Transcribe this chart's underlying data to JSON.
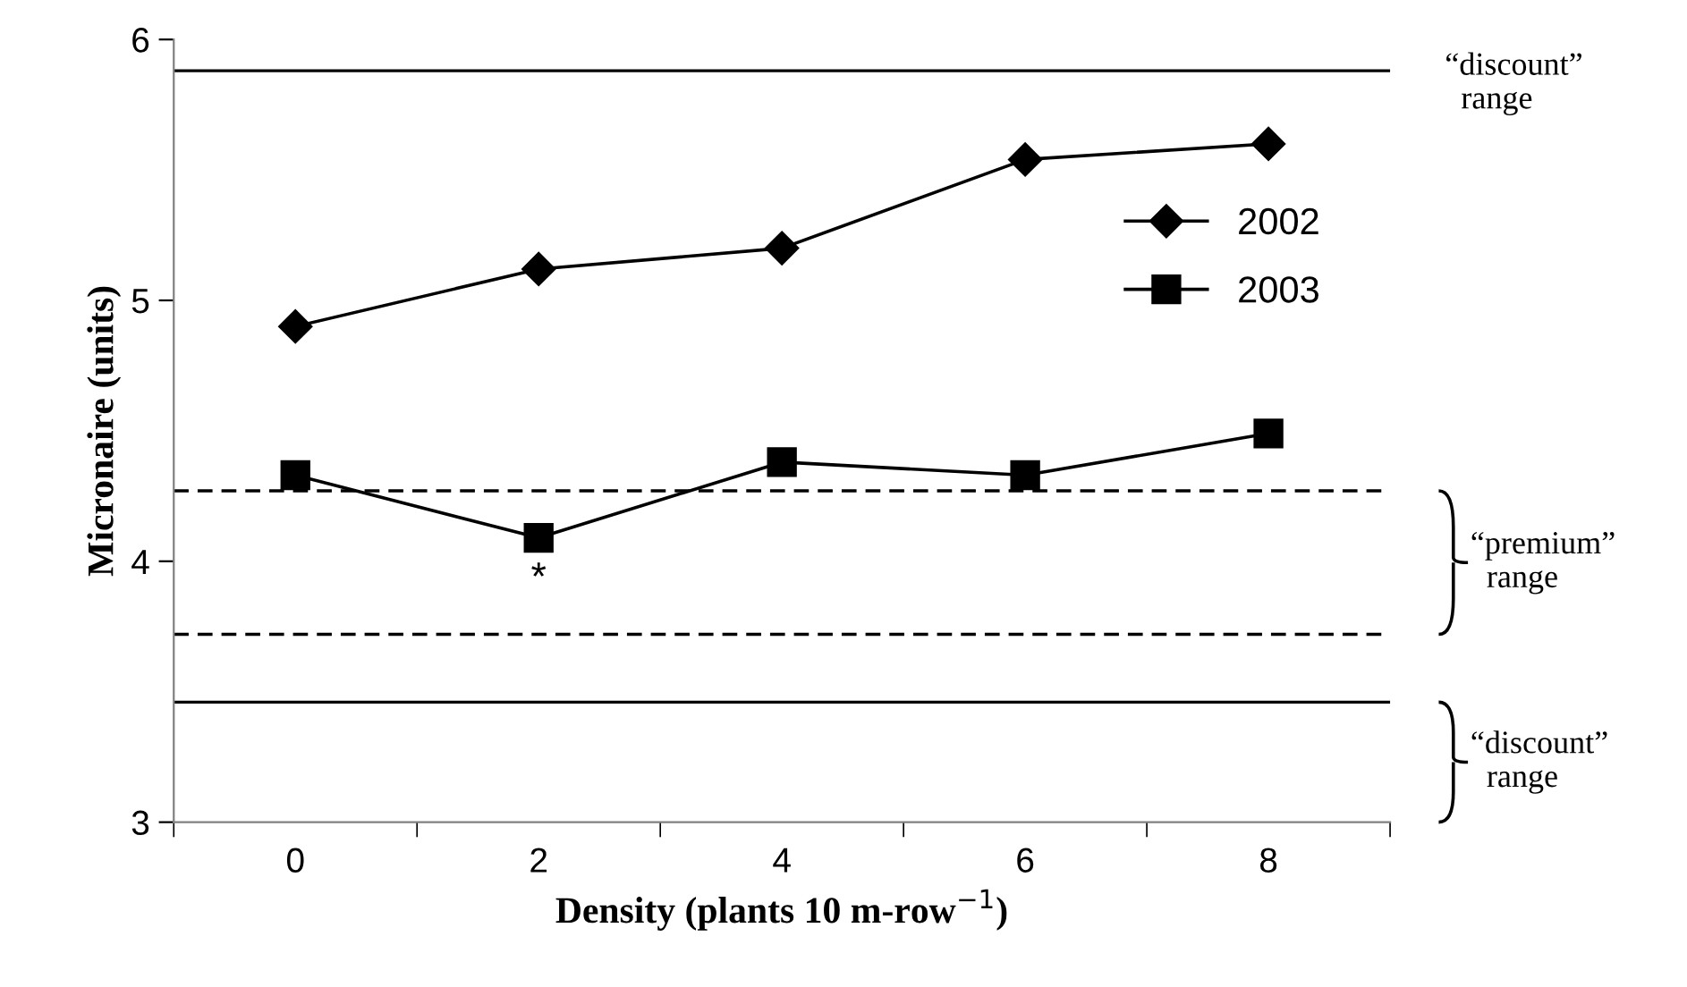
{
  "chart_data": {
    "type": "line",
    "xlabel": "Density (plants 10 m-row$^{−1}$)",
    "ylabel": "Micronaire (units)",
    "categories": [
      "0",
      "2",
      "4",
      "6",
      "8"
    ],
    "series": [
      {
        "name": "2002",
        "color": "#000000",
        "marker": "diamond",
        "values": [
          4.9,
          5.12,
          5.2,
          5.54,
          5.6
        ]
      },
      {
        "name": "2003",
        "color": "#000000",
        "marker": "square",
        "values": [
          4.33,
          4.09,
          4.38,
          4.33,
          4.49
        ]
      }
    ],
    "ylim": [
      3,
      6
    ],
    "yticks": [
      3,
      4,
      5,
      6
    ],
    "ref_lines": [
      {
        "axis": "y",
        "value": 5.88,
        "line_style": "solid",
        "color": "#000000"
      },
      {
        "axis": "y",
        "value": 4.27,
        "line_style": "dashed",
        "color": "#000000"
      },
      {
        "axis": "y",
        "value": 3.72,
        "line_style": "dashed",
        "color": "#000000"
      },
      {
        "axis": "y",
        "value": 3.46,
        "line_style": "solid",
        "color": "#000000"
      }
    ],
    "annotations": [
      "“discount” range",
      "“premium” range",
      "“discount” range",
      "*"
    ],
    "grid": false,
    "legend": "right",
    "line_style": "solid"
  }
}
